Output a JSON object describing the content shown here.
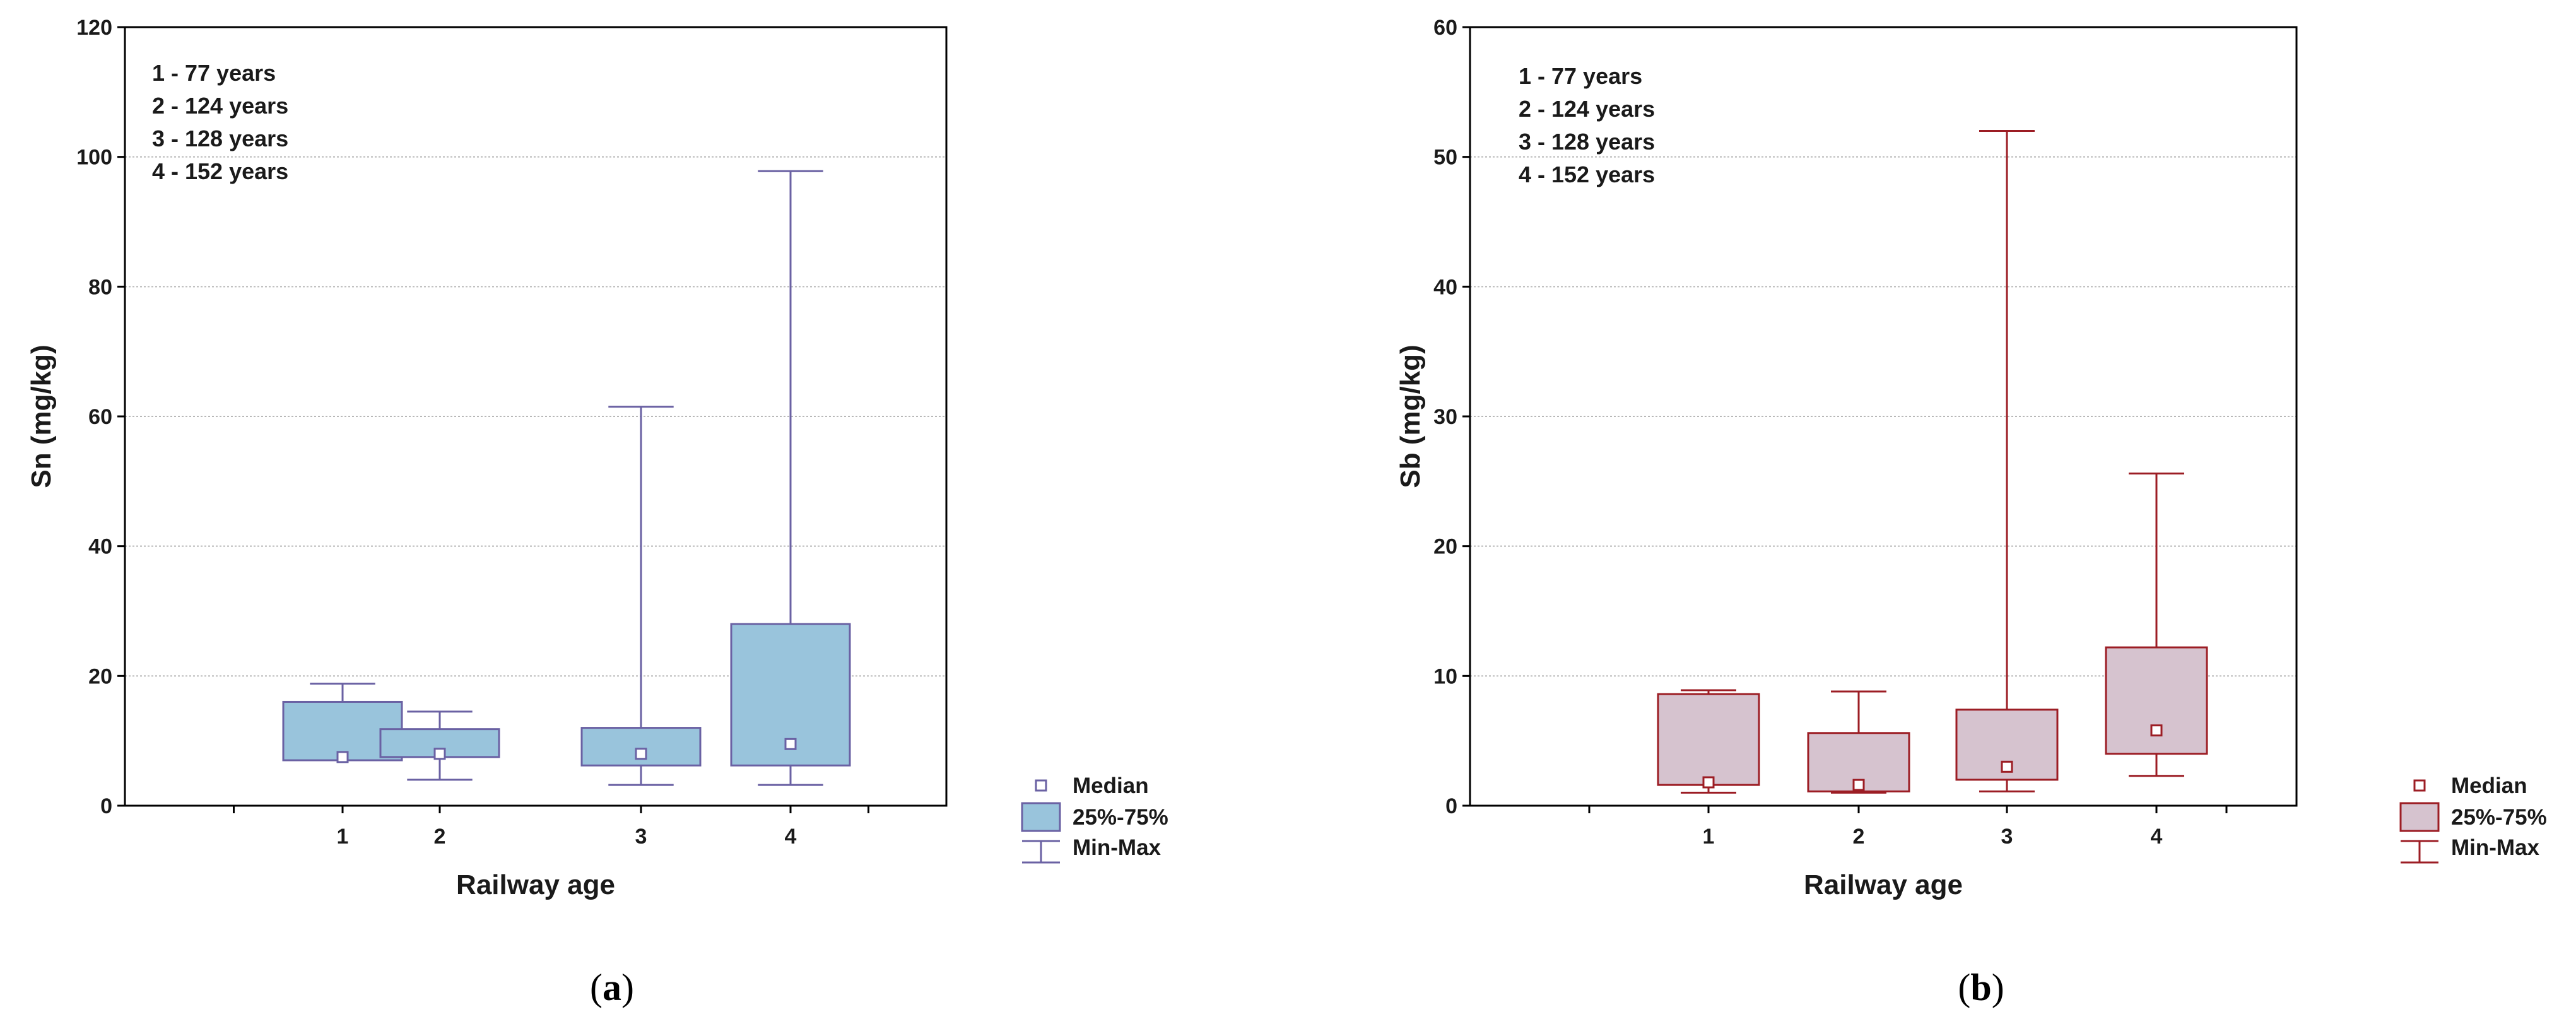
{
  "chart_data": [
    {
      "type": "boxplot",
      "panel": "a",
      "ylabel": "Sn (mg/kg)",
      "xlabel": "Railway age",
      "ylim": [
        0,
        120
      ],
      "yticks": [
        "0",
        "20",
        "40",
        "60",
        "80",
        "100",
        "120"
      ],
      "categories": [
        "1",
        "2",
        "3",
        "4"
      ],
      "notes": [
        "1 - 77 years",
        "2 - 124 years",
        "3 - 128 years",
        "4 - 152 years"
      ],
      "boxes": [
        {
          "category": "1",
          "min": 7,
          "q1": 7,
          "median": 7.5,
          "q3": 16,
          "max": 18.8
        },
        {
          "category": "2",
          "min": 4,
          "q1": 7.5,
          "median": 8,
          "q3": 11.8,
          "max": 14.5
        },
        {
          "category": "3",
          "min": 3.2,
          "q1": 6.2,
          "median": 8,
          "q3": 12,
          "max": 61.5
        },
        {
          "category": "4",
          "min": 3.2,
          "q1": 6.2,
          "median": 9.5,
          "q3": 28,
          "max": 97.8
        }
      ],
      "legend": {
        "median": "Median",
        "box": "25%-75%",
        "whisker": "Min-Max"
      },
      "colors": {
        "fill": "#99c4dc",
        "stroke": "#6a61a3"
      },
      "caption_open": "(",
      "caption_letter": "a",
      "caption_close": ")"
    },
    {
      "type": "boxplot",
      "panel": "b",
      "ylabel": "Sb (mg/kg)",
      "xlabel": "Railway age",
      "ylim": [
        0,
        60
      ],
      "yticks": [
        "0",
        "10",
        "20",
        "30",
        "40",
        "50",
        "60"
      ],
      "categories": [
        "1",
        "2",
        "3",
        "4"
      ],
      "notes": [
        "1 - 77 years",
        "2 - 124 years",
        "3 - 128 years",
        "4 - 152 years"
      ],
      "boxes": [
        {
          "category": "1",
          "min": 1,
          "q1": 1.6,
          "median": 1.8,
          "q3": 8.6,
          "max": 8.9
        },
        {
          "category": "2",
          "min": 1,
          "q1": 1.1,
          "median": 1.6,
          "q3": 5.6,
          "max": 8.8
        },
        {
          "category": "3",
          "min": 1.1,
          "q1": 2,
          "median": 3,
          "q3": 7.4,
          "max": 52
        },
        {
          "category": "4",
          "min": 2.3,
          "q1": 4,
          "median": 5.8,
          "q3": 12.2,
          "max": 25.6
        }
      ],
      "legend": {
        "median": "Median",
        "box": "25%-75%",
        "whisker": "Min-Max"
      },
      "colors": {
        "fill": "#d6c3cf",
        "stroke": "#9c1d24"
      },
      "caption_open": "(",
      "caption_letter": "b",
      "caption_close": ")"
    }
  ]
}
